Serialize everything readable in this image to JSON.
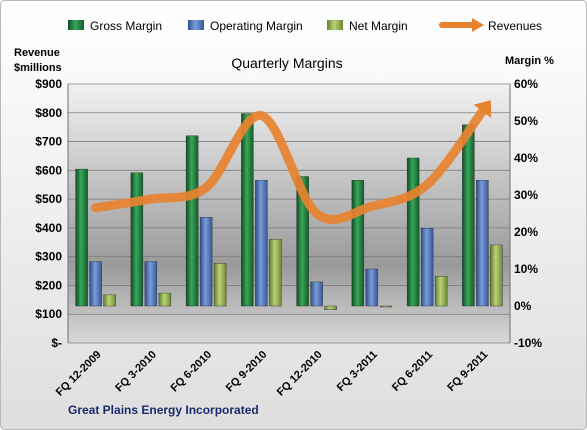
{
  "chart_data": {
    "type": "bar",
    "title": "Quarterly Margins",
    "subtitle": "",
    "company": "Great Plains Energy Incorporated",
    "categories": [
      "FQ 12-2009",
      "FQ 3-2010",
      "FQ 6-2010",
      "FQ 9-2010",
      "FQ 12-2010",
      "FQ 3-2011",
      "FQ 6-2011",
      "FQ 9-2011"
    ],
    "y_left": {
      "label_line1": "Revenue",
      "label_line2": "$millions",
      "ticks": [
        "$-",
        "$100",
        "$200",
        "$300",
        "$400",
        "$500",
        "$600",
        "$700",
        "$800",
        "$900"
      ],
      "range": [
        0,
        900
      ]
    },
    "y_right": {
      "label": "Margin %",
      "ticks": [
        "-10%",
        "0%",
        "10%",
        "20%",
        "30%",
        "40%",
        "50%",
        "60%"
      ],
      "range": [
        -10,
        60
      ]
    },
    "legend_position": "top",
    "grid": true,
    "series": [
      {
        "name": "Gross Margin",
        "axis": "right",
        "kind": "bar",
        "color": "#1f7a3a",
        "values": [
          37,
          36,
          46,
          52,
          35,
          34,
          40,
          49
        ]
      },
      {
        "name": "Operating Margin",
        "axis": "right",
        "kind": "bar",
        "color": "#4a72b8",
        "values": [
          12,
          12,
          24,
          34,
          6.5,
          10,
          21,
          34
        ]
      },
      {
        "name": "Net Margin",
        "axis": "right",
        "kind": "bar",
        "color": "#8fac4a",
        "values": [
          3,
          3.5,
          11.5,
          18,
          -1,
          0,
          8,
          16.5
        ]
      },
      {
        "name": "Revenues",
        "axis": "left",
        "kind": "line",
        "color": "#e8822f",
        "values": [
          470,
          500,
          540,
          790,
          450,
          475,
          550,
          805
        ]
      }
    ]
  }
}
